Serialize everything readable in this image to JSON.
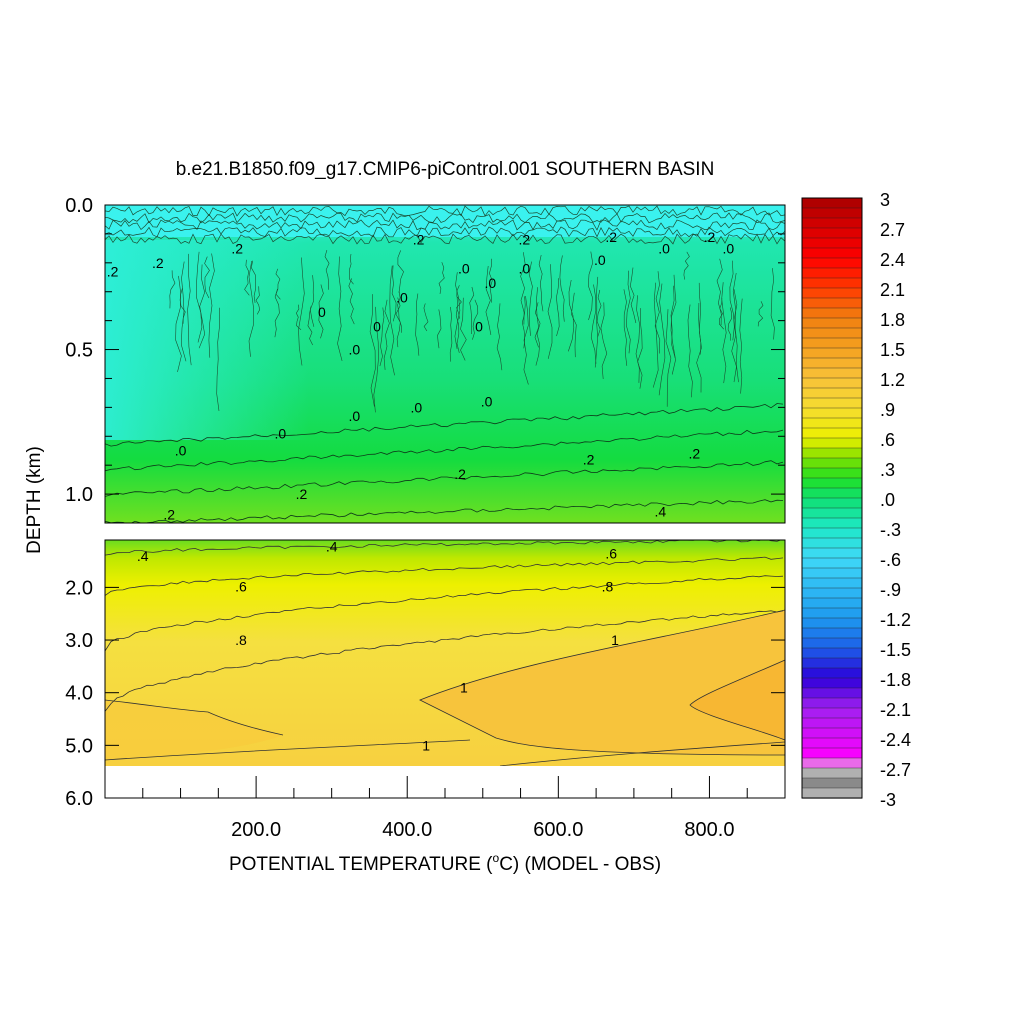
{
  "chart_data": {
    "type": "heatmap",
    "title": "b.e21.B1850.f09_g17.CMIP6-piControl.001 SOUTHERN BASIN",
    "xlabel_main": "POTENTIAL TEMPERATURE (",
    "xlabel_sup": "o",
    "xlabel_tail": "C) (MODEL - OBS)",
    "ylabel": "DEPTH (km)",
    "xlim": [
      0,
      900
    ],
    "x_ticks": [
      {
        "value": 200,
        "label": "200.0"
      },
      {
        "value": 400,
        "label": "400.0"
      },
      {
        "value": 600,
        "label": "600.0"
      },
      {
        "value": 800,
        "label": "800.0"
      }
    ],
    "upper_panel": {
      "ylim": [
        0,
        1.1
      ],
      "y_ticks": [
        {
          "value": 0.0,
          "label": "0.0"
        },
        {
          "value": 0.5,
          "label": "0.5"
        },
        {
          "value": 1.0,
          "label": "1.0"
        }
      ]
    },
    "lower_panel": {
      "ylim": [
        1.1,
        6.0
      ],
      "y_ticks": [
        {
          "value": 2.0,
          "label": "2.0"
        },
        {
          "value": 3.0,
          "label": "3.0"
        },
        {
          "value": 4.0,
          "label": "4.0"
        },
        {
          "value": 5.0,
          "label": "5.0"
        },
        {
          "value": 6.0,
          "label": "6.0"
        }
      ],
      "data_bottom_depth": 5.4
    },
    "colorbar": {
      "min": -3,
      "max": 3,
      "labels": [
        "3",
        "2.7",
        "2.4",
        "2.1",
        "1.8",
        "1.5",
        "1.2",
        ".9",
        ".6",
        ".3",
        ".0",
        "-.3",
        "-.6",
        "-.9",
        "-1.2",
        "-1.5",
        "-1.8",
        "-2.1",
        "-2.4",
        "-2.7",
        "-3"
      ],
      "stops": [
        {
          "v": -3.0,
          "c": "#6e6e6e"
        },
        {
          "v": -2.7,
          "c": "#d4d4d4"
        },
        {
          "v": -2.6,
          "c": "#ff00ff"
        },
        {
          "v": -2.1,
          "c": "#a020f0"
        },
        {
          "v": -1.8,
          "c": "#2b00d9"
        },
        {
          "v": -1.5,
          "c": "#1d5fe8"
        },
        {
          "v": -1.2,
          "c": "#1e9aef"
        },
        {
          "v": -0.6,
          "c": "#3fd8f8"
        },
        {
          "v": -0.3,
          "c": "#1ee8c8"
        },
        {
          "v": 0.0,
          "c": "#0fe070"
        },
        {
          "v": 0.2,
          "c": "#22e022"
        },
        {
          "v": 0.4,
          "c": "#80e000"
        },
        {
          "v": 0.6,
          "c": "#ecf000"
        },
        {
          "v": 0.9,
          "c": "#f6dc30"
        },
        {
          "v": 1.2,
          "c": "#f7c238"
        },
        {
          "v": 1.5,
          "c": "#f5a020"
        },
        {
          "v": 1.8,
          "c": "#f08010"
        },
        {
          "v": 2.1,
          "c": "#ff3a00"
        },
        {
          "v": 2.4,
          "c": "#ff0000"
        },
        {
          "v": 2.7,
          "c": "#d80000"
        },
        {
          "v": 3.0,
          "c": "#a80000"
        }
      ]
    },
    "contour_labels": [
      {
        "text": ".2",
        "x": 10,
        "depth": 0.23
      },
      {
        "text": ".2",
        "x": 70,
        "depth": 0.2
      },
      {
        "text": ".2",
        "x": 175,
        "depth": 0.15
      },
      {
        "text": ".2",
        "x": 415,
        "depth": 0.12
      },
      {
        "text": ".2",
        "x": 555,
        "depth": 0.12
      },
      {
        "text": ".2",
        "x": 670,
        "depth": 0.11
      },
      {
        "text": ".2",
        "x": 800,
        "depth": 0.11
      },
      {
        "text": ".0",
        "x": 475,
        "depth": 0.22
      },
      {
        "text": ".0",
        "x": 555,
        "depth": 0.22
      },
      {
        "text": ".0",
        "x": 655,
        "depth": 0.19
      },
      {
        "text": ".0",
        "x": 740,
        "depth": 0.15
      },
      {
        "text": ".0",
        "x": 825,
        "depth": 0.15
      },
      {
        "text": ".0",
        "x": 510,
        "depth": 0.27
      },
      {
        "text": ".0",
        "x": 393,
        "depth": 0.32
      },
      {
        "text": "0",
        "x": 287,
        "depth": 0.37
      },
      {
        "text": "0",
        "x": 360,
        "depth": 0.42
      },
      {
        "text": "0",
        "x": 495,
        "depth": 0.42
      },
      {
        "text": ".0",
        "x": 330,
        "depth": 0.5
      },
      {
        "text": ".0",
        "x": 505,
        "depth": 0.68
      },
      {
        "text": ".0",
        "x": 412,
        "depth": 0.7
      },
      {
        "text": ".0",
        "x": 330,
        "depth": 0.73
      },
      {
        "text": ".0",
        "x": 232,
        "depth": 0.79
      },
      {
        "text": ".0",
        "x": 100,
        "depth": 0.85
      },
      {
        "text": ".2",
        "x": 260,
        "depth": 1.0
      },
      {
        "text": ".2",
        "x": 470,
        "depth": 0.93
      },
      {
        "text": ".2",
        "x": 640,
        "depth": 0.88
      },
      {
        "text": ".2",
        "x": 780,
        "depth": 0.86
      },
      {
        "text": ".2",
        "x": 85,
        "depth": 1.07
      },
      {
        "text": ".4",
        "x": 735,
        "depth": 1.06
      },
      {
        "text": ".4",
        "x": 50,
        "depth": 1.4
      },
      {
        "text": ".4",
        "x": 300,
        "depth": 1.22
      },
      {
        "text": ".6",
        "x": 670,
        "depth": 1.36
      },
      {
        "text": ".6",
        "x": 180,
        "depth": 1.98
      },
      {
        "text": ".8",
        "x": 665,
        "depth": 1.98
      },
      {
        "text": ".8",
        "x": 180,
        "depth": 3.0
      },
      {
        "text": "1",
        "x": 675,
        "depth": 3.0
      },
      {
        "text": "1",
        "x": 475,
        "depth": 3.9
      },
      {
        "text": "1",
        "x": 425,
        "depth": 5.0
      }
    ]
  }
}
